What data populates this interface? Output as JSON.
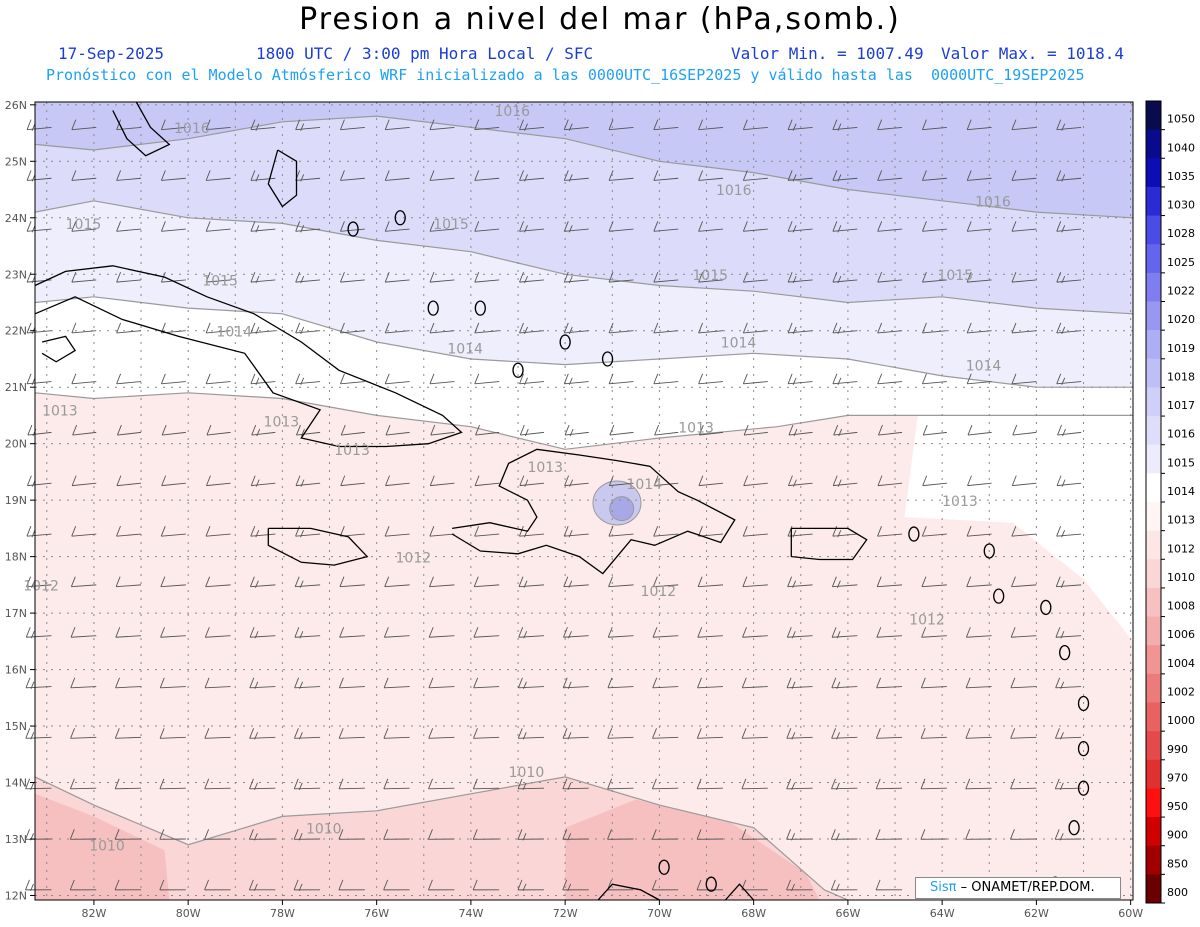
{
  "header": {
    "title": "Presion a nivel del mar (hPa,somb.)",
    "date": "17-Sep-2025",
    "time": "1800 UTC / 3:00 pm Hora Local / SFC",
    "min_label": "Valor Min. = 1007.49",
    "max_label": "Valor Max. = 1018.4",
    "forecast_note": "Pronóstico con el Modelo Atmósferico WRF inicializado a las 0000UTC_16SEP2025 y válido hasta las  0000UTC_19SEP2025"
  },
  "map": {
    "lat_labels": [
      "26N",
      "25N",
      "24N",
      "23N",
      "22N",
      "21N",
      "20N",
      "19N",
      "18N",
      "17N",
      "16N",
      "15N",
      "14N",
      "13N",
      "12N"
    ],
    "lon_labels": [
      "82W",
      "80W",
      "78W",
      "76W",
      "74W",
      "72W",
      "70W",
      "68W",
      "66W",
      "64W",
      "62W",
      "60W"
    ],
    "isobar_labels": [
      {
        "text": "1016",
        "lon": -80.3,
        "lat": 25.5
      },
      {
        "text": "1016",
        "lon": -73.5,
        "lat": 25.8
      },
      {
        "text": "1016",
        "lon": -68.8,
        "lat": 24.4
      },
      {
        "text": "1016",
        "lon": -63.3,
        "lat": 24.2
      },
      {
        "text": "1015",
        "lon": -82.6,
        "lat": 23.8
      },
      {
        "text": "1015",
        "lon": -74.8,
        "lat": 23.8
      },
      {
        "text": "1015",
        "lon": -79.7,
        "lat": 22.8
      },
      {
        "text": "1015",
        "lon": -69.3,
        "lat": 22.9
      },
      {
        "text": "1015",
        "lon": -64.1,
        "lat": 22.9
      },
      {
        "text": "1014",
        "lon": -79.4,
        "lat": 21.9
      },
      {
        "text": "1014",
        "lon": -74.5,
        "lat": 21.6
      },
      {
        "text": "1014",
        "lon": -68.7,
        "lat": 21.7
      },
      {
        "text": "1014",
        "lon": -63.5,
        "lat": 21.3
      },
      {
        "text": "1014",
        "lon": -70.7,
        "lat": 19.2
      },
      {
        "text": "1013",
        "lon": -83.1,
        "lat": 20.5
      },
      {
        "text": "1013",
        "lon": -78.4,
        "lat": 20.3
      },
      {
        "text": "1013",
        "lon": -76.9,
        "lat": 19.8
      },
      {
        "text": "1013",
        "lon": -72.8,
        "lat": 19.5
      },
      {
        "text": "1013",
        "lon": -69.6,
        "lat": 20.2
      },
      {
        "text": "1013",
        "lon": -64.0,
        "lat": 18.9
      },
      {
        "text": "1012",
        "lon": -75.6,
        "lat": 17.9
      },
      {
        "text": "1012",
        "lon": -83.5,
        "lat": 17.4
      },
      {
        "text": "1012",
        "lon": -70.4,
        "lat": 17.3
      },
      {
        "text": "1012",
        "lon": -64.7,
        "lat": 16.8
      },
      {
        "text": "1010",
        "lon": -73.2,
        "lat": 14.1
      },
      {
        "text": "1010",
        "lon": -77.5,
        "lat": 13.1
      },
      {
        "text": "1010",
        "lon": -82.1,
        "lat": 12.8
      }
    ],
    "colors": {
      "p1016": "#c7c8f6",
      "p1015": "#dcdcfa",
      "p1014": "#eeeefc",
      "p1013": "#ffffff",
      "p1012": "#fdeaea",
      "p1010": "#fbd6d6",
      "p1008": "#f7c0c0",
      "grid": "#8a8a8a",
      "coast": "#000000",
      "isobar": "#9a9a9a",
      "barb": "#555555"
    }
  },
  "colorbar": {
    "levels": [
      {
        "label": "1050",
        "color": "#0a0a4f"
      },
      {
        "label": "1040",
        "color": "#0a0a8c"
      },
      {
        "label": "1035",
        "color": "#0d0db5"
      },
      {
        "label": "1030",
        "color": "#2b2bd6"
      },
      {
        "label": "1028",
        "color": "#4b4be6"
      },
      {
        "label": "1025",
        "color": "#6464ec"
      },
      {
        "label": "1022",
        "color": "#7e7ef0"
      },
      {
        "label": "1020",
        "color": "#9898f3"
      },
      {
        "label": "1019",
        "color": "#aeaef6"
      },
      {
        "label": "1018",
        "color": "#bfbff7"
      },
      {
        "label": "1017",
        "color": "#cfcff9"
      },
      {
        "label": "1016",
        "color": "#dedefb"
      },
      {
        "label": "1015",
        "color": "#ececfc"
      },
      {
        "label": "1014",
        "color": "#ffffff"
      },
      {
        "label": "1013",
        "color": "#fff5f5"
      },
      {
        "label": "1012",
        "color": "#fde6e6"
      },
      {
        "label": "1010",
        "color": "#fbd6d6"
      },
      {
        "label": "1008",
        "color": "#f7c1c1"
      },
      {
        "label": "1006",
        "color": "#f4adad"
      },
      {
        "label": "1004",
        "color": "#f09494"
      },
      {
        "label": "1002",
        "color": "#ec7b7b"
      },
      {
        "label": "1000",
        "color": "#e86262"
      },
      {
        "label": "990",
        "color": "#e44a4a"
      },
      {
        "label": "970",
        "color": "#e03030"
      },
      {
        "label": "950",
        "color": "#ff1010"
      },
      {
        "label": "900",
        "color": "#d00000"
      },
      {
        "label": "850",
        "color": "#a00000"
      },
      {
        "label": "800",
        "color": "#6a0000"
      }
    ]
  },
  "credit": {
    "brand": "Sisπ",
    "text": " – ONAMET/REP.DOM."
  }
}
